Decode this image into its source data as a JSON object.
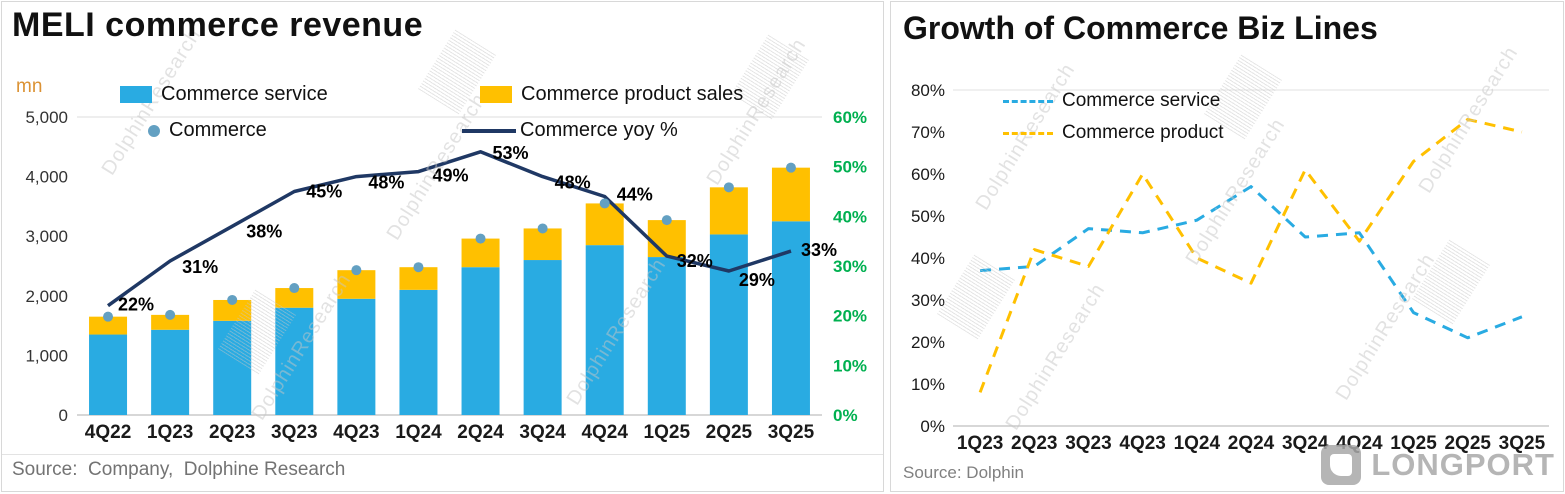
{
  "watermark": "DolphinResearch",
  "left_panel": {
    "title": "MELI commerce revenue",
    "unit_label": "mn",
    "legend": {
      "service": "Commerce service",
      "product": "Commerce product sales",
      "commerce": "Commerce",
      "yoy": "Commerce yoy %"
    },
    "source": "Source:  Company,  Dolphine Research"
  },
  "right_panel": {
    "title": "Growth of Commerce Biz Lines",
    "legend": {
      "service": "Commerce service",
      "product": "Commerce product"
    },
    "source": "Source: Dolphin",
    "logo_text": "LONGPORT"
  },
  "chart_data": [
    {
      "type": "bar",
      "title": "MELI commerce revenue",
      "unit": "mn",
      "legend_position": "top",
      "grid": false,
      "categories": [
        "4Q22",
        "1Q23",
        "2Q23",
        "3Q23",
        "4Q23",
        "1Q24",
        "2Q24",
        "3Q24",
        "4Q24",
        "1Q25",
        "2Q25",
        "3Q25"
      ],
      "series": [
        {
          "name": "Commerce service",
          "type": "bar",
          "stacked": true,
          "color": "#29ABE2",
          "values": [
            1350,
            1430,
            1580,
            1800,
            1950,
            2100,
            2480,
            2600,
            2850,
            2650,
            3030,
            3250
          ]
        },
        {
          "name": "Commerce product sales",
          "type": "bar",
          "stacked": true,
          "color": "#FFC000",
          "values": [
            300,
            250,
            350,
            330,
            480,
            380,
            480,
            530,
            700,
            620,
            790,
            900
          ]
        },
        {
          "name": "Commerce",
          "type": "scatter",
          "color": "#63A0C2",
          "values": [
            1650,
            1680,
            1930,
            2130,
            2430,
            2480,
            2960,
            3130,
            3550,
            3270,
            3820,
            4150
          ]
        },
        {
          "name": "Commerce yoy %",
          "type": "line",
          "axis": "right",
          "color": "#1F3864",
          "values": [
            22,
            31,
            38,
            45,
            48,
            49,
            53,
            48,
            44,
            32,
            29,
            33
          ],
          "labels": [
            "22%",
            "31%",
            "38%",
            "45%",
            "48%",
            "49%",
            "53%",
            "48%",
            "44%",
            "32%",
            "29%",
            "33%"
          ]
        }
      ],
      "left_axis": {
        "min": 0,
        "max": 5000,
        "step": 1000,
        "tick_labels": [
          "0",
          "1,000",
          "2,000",
          "3,000",
          "4,000",
          "5,000"
        ]
      },
      "right_axis": {
        "min": 0,
        "max": 60,
        "step": 10,
        "color": "#00B050",
        "tick_labels": [
          "0%",
          "10%",
          "20%",
          "30%",
          "40%",
          "50%",
          "60%"
        ]
      }
    },
    {
      "type": "line",
      "title": "Growth of Commerce Biz Lines",
      "legend_position": "top-left",
      "grid": false,
      "categories": [
        "1Q23",
        "2Q23",
        "3Q23",
        "4Q23",
        "1Q24",
        "2Q24",
        "3Q24",
        "4Q24",
        "1Q25",
        "2Q25",
        "3Q25"
      ],
      "series": [
        {
          "name": "Commerce service",
          "color": "#29ABE2",
          "dashed": true,
          "values": [
            37,
            38,
            47,
            46,
            49,
            57,
            45,
            46,
            27,
            21,
            26
          ]
        },
        {
          "name": "Commerce product",
          "color": "#FFC000",
          "dashed": true,
          "values": [
            8,
            42,
            38,
            60,
            40,
            34,
            61,
            44,
            63,
            73,
            70
          ]
        }
      ],
      "y_axis": {
        "min": 0,
        "max": 80,
        "step": 10,
        "tick_labels": [
          "0%",
          "10%",
          "20%",
          "30%",
          "40%",
          "50%",
          "60%",
          "70%",
          "80%"
        ]
      }
    }
  ]
}
